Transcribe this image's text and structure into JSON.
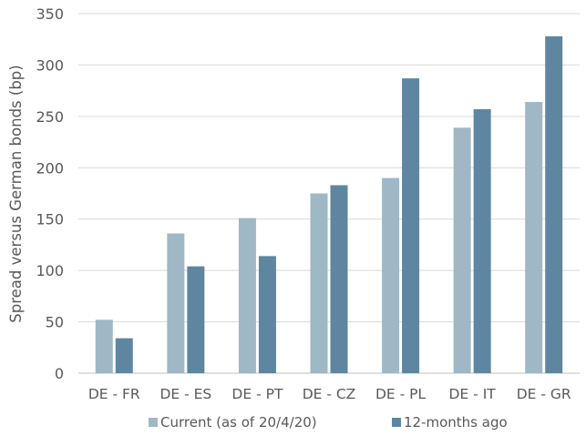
{
  "chart_data": {
    "type": "bar",
    "title": "",
    "xlabel": "",
    "ylabel": "Spread versus German bonds (bp)",
    "ylim": [
      0,
      350
    ],
    "yticks": [
      0,
      50,
      100,
      150,
      200,
      250,
      300,
      350
    ],
    "grid": true,
    "legend_position": "bottom",
    "categories": [
      "DE - FR",
      "DE - ES",
      "DE - PT",
      "DE - CZ",
      "DE - PL",
      "DE - IT",
      "DE - GR"
    ],
    "series": [
      {
        "name": "Current (as of 20/4/20)",
        "color": "#a0b7c5",
        "values": [
          52,
          136,
          151,
          175,
          190,
          239,
          264
        ]
      },
      {
        "name": "12-months ago",
        "color": "#5e86a1",
        "values": [
          34,
          104,
          114,
          183,
          287,
          257,
          328
        ]
      }
    ]
  }
}
